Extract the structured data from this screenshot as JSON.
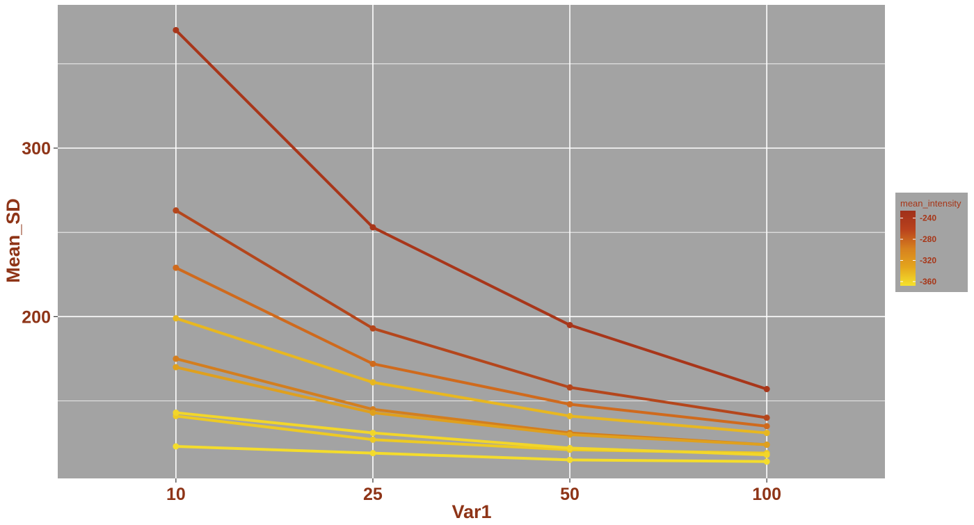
{
  "chart_data": {
    "type": "line",
    "xlabel": "Var1",
    "ylabel": "Mean_SD",
    "x": [
      "10",
      "25",
      "50",
      "100"
    ],
    "y_ticks": [
      200,
      300
    ],
    "ylim": [
      104,
      385
    ],
    "grid": true,
    "panel_background": "#a3a3a3",
    "grid_color": "#ffffff",
    "legend": {
      "title": "mean_intensity",
      "position": "right",
      "ticks": [
        -240,
        -280,
        -320,
        -360
      ],
      "range": [
        -368,
        -226
      ],
      "gradient": [
        "#f5e22c",
        "#e4a51d",
        "#d6801f",
        "#b9421d",
        "#a0301a"
      ]
    },
    "series": [
      {
        "intensity": -228,
        "color": "#a8361a",
        "values": [
          370,
          253,
          195,
          157
        ]
      },
      {
        "intensity": -250,
        "color": "#b4461c",
        "values": [
          263,
          193,
          158,
          140
        ]
      },
      {
        "intensity": -272,
        "color": "#cf6a1d",
        "values": [
          229,
          172,
          148,
          135
        ]
      },
      {
        "intensity": -290,
        "color": "#d37e1f",
        "values": [
          175,
          145,
          131,
          124
        ]
      },
      {
        "intensity": -302,
        "color": "#dfa01e",
        "values": [
          170,
          143,
          130,
          124
        ]
      },
      {
        "intensity": -318,
        "color": "#e8b720",
        "values": [
          199,
          161,
          141,
          131
        ]
      },
      {
        "intensity": -338,
        "color": "#edca24",
        "values": [
          141,
          127,
          121,
          119
        ]
      },
      {
        "intensity": -350,
        "color": "#f2d62a",
        "values": [
          143,
          131,
          122,
          118
        ]
      },
      {
        "intensity": -366,
        "color": "#f4dc2c",
        "values": [
          123,
          119,
          115,
          114
        ]
      }
    ]
  }
}
